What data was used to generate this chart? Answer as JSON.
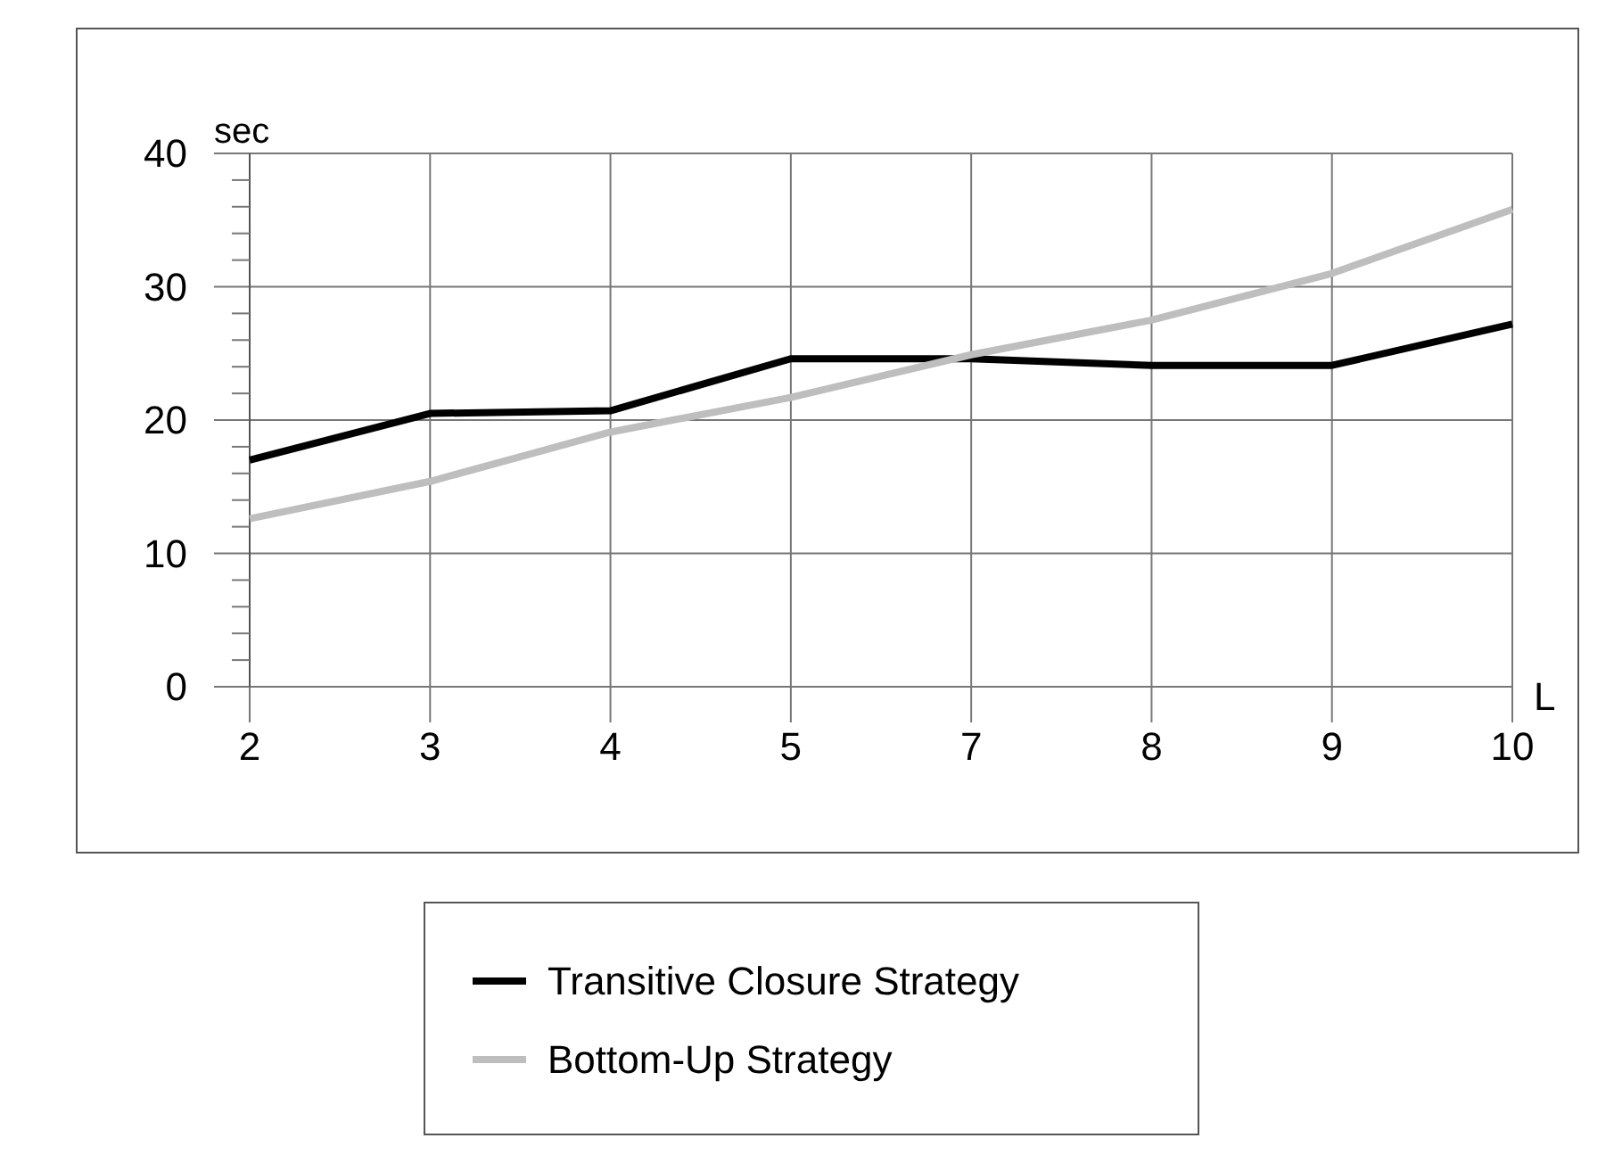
{
  "chart_data": {
    "type": "line",
    "ylabel": "sec",
    "xlabel": "L",
    "categories": [
      "2",
      "3",
      "4",
      "5",
      "7",
      "8",
      "9",
      "10"
    ],
    "series": [
      {
        "name": "Transitive Closure Strategy",
        "color": "#000000",
        "values": [
          17.0,
          20.5,
          20.7,
          24.6,
          24.6,
          24.1,
          24.1,
          27.2
        ]
      },
      {
        "name": "Bottom-Up Strategy",
        "color": "#bebebe",
        "values": [
          12.6,
          15.4,
          19.1,
          21.7,
          24.9,
          27.5,
          31.0,
          35.8
        ]
      }
    ],
    "ylim": [
      0,
      40
    ],
    "yticks": [
      0,
      {
        "value": 2,
        "label": null
      },
      {
        "value": 4,
        "label": null
      },
      {
        "value": 6,
        "label": null
      },
      {
        "value": 8,
        "label": null
      },
      10,
      {
        "value": 12,
        "label": null
      },
      {
        "value": 14,
        "label": null
      },
      {
        "value": 16,
        "label": null
      },
      {
        "value": 18,
        "label": null
      },
      20,
      {
        "value": 22,
        "label": null
      },
      {
        "value": 24,
        "label": null
      },
      {
        "value": 26,
        "label": null
      },
      {
        "value": 28,
        "label": null
      },
      30,
      {
        "value": 32,
        "label": null
      },
      {
        "value": 34,
        "label": null
      },
      {
        "value": 36,
        "label": null
      },
      {
        "value": 38,
        "label": null
      },
      40
    ],
    "grid": true,
    "legend": "bottom",
    "marker": "none",
    "line_style": "solid"
  }
}
